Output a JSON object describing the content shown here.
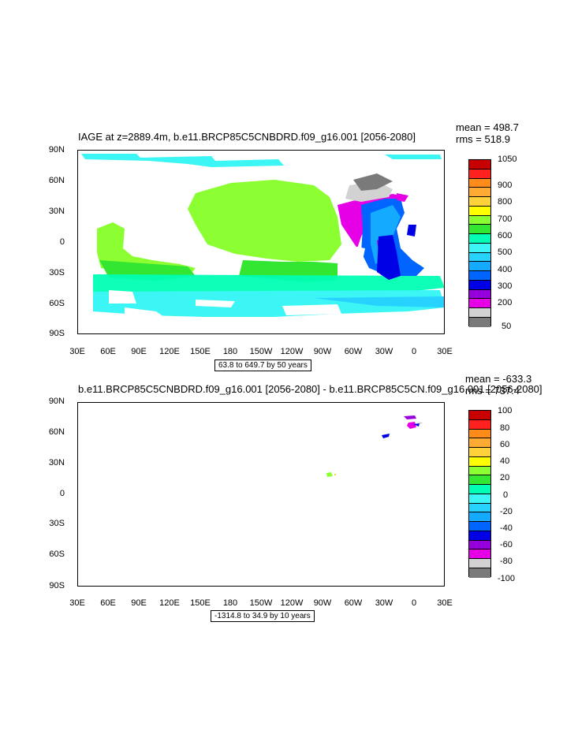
{
  "panel1": {
    "title": "IAGE at z=2889.4m, b.e11.BRCP85C5CNBDRD.f09_g16.001 [2056-2080]",
    "mean": "mean = 498.7",
    "rms": "rms = 518.9",
    "contour_info": "63.8 to 649.7 by 50 years",
    "colorbar_labels": [
      "1050",
      "900",
      "800",
      "700",
      "600",
      "500",
      "400",
      "300",
      "200",
      "50"
    ],
    "colorbar_colors": [
      "#c80000",
      "#ff2020",
      "#ff8c1a",
      "#ffaa33",
      "#ffd23c",
      "#ffff00",
      "#8cff32",
      "#32e632",
      "#00ffb4",
      "#3cf5f5",
      "#28d2ff",
      "#14aaff",
      "#0064ff",
      "#0000e6",
      "#9600dc",
      "#e600e6",
      "#d2d2d2",
      "#7a7a7a"
    ]
  },
  "panel2": {
    "title": "b.e11.BRCP85C5CNBDRD.f09_g16.001 [2056-2080] - b.e11.BRCP85C5CN.f09_g16.001 [2056-2080]",
    "mean": "mean = -633.3",
    "rms": "rms = 737.4",
    "contour_info": "-1314.8 to 34.9 by 10 years",
    "colorbar_labels": [
      "100",
      "80",
      "60",
      "40",
      "20",
      "0",
      "-20",
      "-40",
      "-60",
      "-80",
      "-100"
    ],
    "colorbar_colors": [
      "#c80000",
      "#ff2020",
      "#ff8c1a",
      "#ffaa33",
      "#ffd23c",
      "#ffff00",
      "#8cff32",
      "#32e632",
      "#00ffb4",
      "#3cf5f5",
      "#28d2ff",
      "#14aaff",
      "#0064ff",
      "#0000e6",
      "#9600dc",
      "#e600e6",
      "#d2d2d2",
      "#7a7a7a"
    ]
  },
  "axes": {
    "lat_labels": [
      "90N",
      "60N",
      "30N",
      "0",
      "30S",
      "60S",
      "90S"
    ],
    "lon_labels": [
      "30E",
      "60E",
      "90E",
      "120E",
      "150E",
      "180",
      "150W",
      "120W",
      "90W",
      "60W",
      "30W",
      "0",
      "30E"
    ]
  }
}
